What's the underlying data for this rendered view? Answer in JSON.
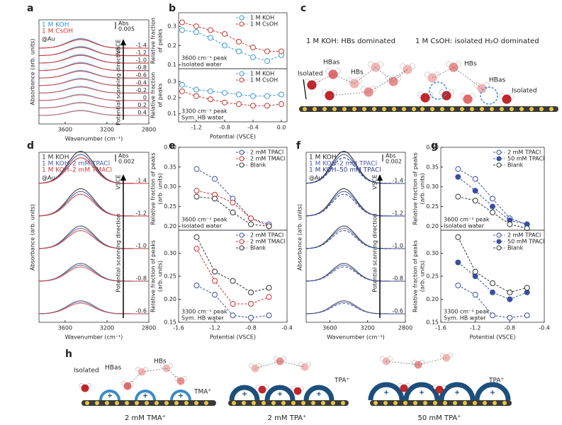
{
  "figure": {
    "panel_labels": [
      "a",
      "b",
      "c",
      "d",
      "e",
      "f",
      "g",
      "h"
    ],
    "c": {
      "titles": [
        "1 M KOH: HBs dominated",
        "1 M CsOH: isolated H₂O dominated"
      ],
      "labels": [
        "Isolated",
        "HBas",
        "HBs",
        "HBs",
        "HBas",
        "Isolated"
      ]
    },
    "h": {
      "labels": [
        "Isolated",
        "HBas",
        "HBs",
        "TMA⁺",
        "TPA⁺",
        "TPA⁺"
      ],
      "captions": [
        "2 mM TMA⁺",
        "2 mM TPA⁺",
        "50 mM TPA⁺"
      ]
    }
  },
  "chart_data": [
    {
      "type": "spectrum",
      "xlim": [
        3850,
        2800
      ],
      "xticks": [
        3600,
        3200,
        2800
      ],
      "xlabel": "Wavenumber (cm⁻¹)",
      "ylabel": "Absorbance (arb. units)",
      "legend": [
        {
          "name": "1 M KOH",
          "color": "#3d8fd1"
        },
        {
          "name": "1 M CsOH",
          "color": "#d83a34"
        }
      ],
      "scale_label": "Abs",
      "scale_value": 0.005,
      "substrate": "@Au",
      "axis_symbol": "VSCE",
      "arrow_label": "Potential scanning direction",
      "potentials": [
        -1.4,
        -1.2,
        {
          "value": -1.0,
          "label": "-1.0"
        },
        -0.8,
        -0.6,
        -0.4,
        -0.2,
        0,
        0.2,
        0.4
      ]
    },
    {
      "type": "line",
      "xlim": [
        -1.45,
        0.08
      ],
      "ylim": [
        0.08,
        0.37
      ],
      "yticks": [
        0.1,
        0.2,
        0.3
      ],
      "ylabel": [
        "Relative fraction",
        "of peaks"
      ],
      "annotation": [
        "3600 cm⁻¹ peak",
        "Isolated water"
      ],
      "legend": "upper right",
      "x": [
        -1.4,
        -1.2,
        -1.0,
        -0.8,
        -0.6,
        -0.4,
        -0.2,
        0
      ],
      "series": [
        {
          "name": "1 M KOH",
          "color": "#3d9ad6",
          "marker": "open",
          "values": [
            0.28,
            0.27,
            0.24,
            0.2,
            0.17,
            0.14,
            0.12,
            0.15
          ]
        },
        {
          "name": "1 M CsOH",
          "color": "#c8372f",
          "marker": "open",
          "values": [
            0.32,
            0.3,
            0.28,
            0.26,
            0.22,
            0.19,
            0.17,
            0.17
          ]
        }
      ]
    },
    {
      "type": "line",
      "xlim": [
        -1.45,
        0.08
      ],
      "ylim": [
        0.05,
        0.38
      ],
      "yticks": [
        0.1,
        0.2,
        0.3
      ],
      "xticks": [
        -1.2,
        -0.8,
        -0.4,
        {
          "value": 0,
          "label": "0.0"
        }
      ],
      "xlabel": "Potential (VSCE)",
      "ylabel": [
        "Relative fraction",
        "of peaks"
      ],
      "annotation": [
        "3300 cm⁻¹ peak",
        "Sym. HB water"
      ],
      "legend": "upper right",
      "x": [
        -1.4,
        -1.2,
        -1.0,
        -0.8,
        -0.6,
        -0.4,
        -0.2,
        0
      ],
      "series": [
        {
          "name": "1 M KOH",
          "color": "#3d9ad6",
          "marker": "open",
          "values": [
            0.28,
            0.25,
            0.24,
            0.23,
            0.22,
            0.21,
            0.21,
            0.22
          ]
        },
        {
          "name": "1 M CsOH",
          "color": "#c8372f",
          "marker": "open",
          "values": [
            0.24,
            0.21,
            0.19,
            0.17,
            0.16,
            0.15,
            0.15,
            0.16
          ]
        }
      ]
    },
    {
      "type": "spectrum",
      "xlim": [
        3850,
        2800
      ],
      "xticks": [
        3600,
        3200,
        2800
      ],
      "xlabel": "Wavenumber (cm⁻¹)",
      "ylabel": "Absorbance (arb. units)",
      "legend": [
        {
          "name": "1 M KOH",
          "color": "#333333"
        },
        {
          "name": "1 M KOH–2 mM TPACl",
          "color": "#4a5aa8"
        },
        {
          "name": "1 M KOH–2 mM TMACl",
          "color": "#d83a34"
        }
      ],
      "scale_label": "Abs",
      "scale_value": 0.002,
      "substrate": "@Au",
      "axis_symbol": "VSCE",
      "arrow_label": "Potential scanning direction",
      "potentials": [
        -1.4,
        -1.2,
        {
          "value": -1.0,
          "label": "-1.0"
        },
        -0.8,
        -0.6
      ]
    },
    {
      "type": "line",
      "xlim": [
        -1.6,
        -0.4
      ],
      "ylim": [
        0.19,
        0.4
      ],
      "yticks": [
        {
          "value": 0.2,
          "label": "0.20"
        },
        0.25,
        {
          "value": 0.3,
          "label": "0.30"
        },
        0.35,
        {
          "value": 0.4,
          "label": "0.40"
        }
      ],
      "ylabel": [
        "Relative fraction of peaks",
        "(arb. units)"
      ],
      "annotation": [
        "3600 cm⁻¹ peak",
        "Isolated water"
      ],
      "legend": "upper right",
      "x": [
        -1.4,
        -1.2,
        -1.0,
        -0.8,
        -0.6
      ],
      "series": [
        {
          "name": "2 mM TPACl",
          "color": "#3b4fa0",
          "marker": "open",
          "values": [
            0.345,
            0.32,
            0.27,
            0.22,
            0.205
          ]
        },
        {
          "name": "2 mM TMACl",
          "color": "#d0312d",
          "marker": "open",
          "values": [
            0.29,
            0.28,
            0.26,
            0.22,
            0.2
          ]
        },
        {
          "name": "Blank",
          "color": "#333333",
          "marker": "open",
          "values": [
            0.275,
            0.27,
            0.235,
            0.205,
            0.2
          ]
        }
      ]
    },
    {
      "type": "line",
      "xlim": [
        -1.6,
        -0.4
      ],
      "ylim": [
        0.15,
        0.35
      ],
      "yticks": [
        0.15,
        {
          "value": 0.2,
          "label": "0.20"
        },
        0.25,
        {
          "value": 0.3,
          "label": "0.30"
        }
      ],
      "xticks": [
        -1.6,
        -1.2,
        -0.8,
        -0.4
      ],
      "xlabel": "Potential (VSCE)",
      "ylabel": [
        "Relative fraction of peaks",
        "(arb. units)"
      ],
      "annotation": [
        "3300 cm⁻¹ peak",
        "Sym. HB water"
      ],
      "legend": "upper right",
      "x": [
        -1.4,
        -1.2,
        -1.0,
        -0.8,
        -0.6
      ],
      "series": [
        {
          "name": "2 mM TPACl",
          "color": "#3b4fa0",
          "marker": "open",
          "values": [
            0.23,
            0.21,
            0.165,
            0.16,
            0.165
          ]
        },
        {
          "name": "2 mM TMACl",
          "color": "#d0312d",
          "marker": "open",
          "values": [
            0.31,
            0.24,
            0.19,
            0.19,
            0.205
          ]
        },
        {
          "name": "Blank",
          "color": "#333333",
          "marker": "open",
          "values": [
            0.335,
            0.26,
            0.24,
            0.215,
            0.225
          ]
        }
      ]
    },
    {
      "type": "spectrum",
      "xlim": [
        3850,
        2800
      ],
      "xticks": [
        3600,
        3200,
        2800
      ],
      "xlabel": "Wavenumber (cm⁻¹)",
      "ylabel": "Absorbance (arb. units)",
      "legend": [
        {
          "name": "1 M KOH",
          "color": "#222222"
        },
        {
          "name": "1 M KOH–2 mM TPACl",
          "color": "#4a5aa8"
        },
        {
          "name": "1 M KOH–50 mM TPACl",
          "color": "#2c3e8a"
        }
      ],
      "scale_label": "Abs",
      "scale_value": 0.002,
      "substrate": "@Au",
      "axis_symbol": "VSCE",
      "arrow_label": "Potential scanning direction",
      "potentials": [
        -1.4,
        -1.2,
        {
          "value": -1.0,
          "label": "-1.0"
        },
        -0.8,
        -0.6
      ]
    },
    {
      "type": "line",
      "xlim": [
        -1.6,
        -0.4
      ],
      "ylim": [
        0.19,
        0.4
      ],
      "yticks": [
        {
          "value": 0.2,
          "label": "0.20"
        },
        0.25,
        {
          "value": 0.3,
          "label": "0.30"
        },
        0.35,
        {
          "value": 0.4,
          "label": "0.40"
        }
      ],
      "ylabel": [
        "Relative fraction of peaks",
        "(arb. units)"
      ],
      "annotation": [
        "3600 cm⁻¹ peak",
        "Isolated water"
      ],
      "legend": "upper right",
      "x": [
        -1.4,
        -1.2,
        -1.0,
        -0.8,
        -0.6
      ],
      "series": [
        {
          "name": "2 mM TPACl",
          "color": "#3b4fa0",
          "marker": "open",
          "values": [
            0.345,
            0.32,
            0.27,
            0.22,
            0.205
          ]
        },
        {
          "name": "50 mM TPACl",
          "color": "#3b4fa0",
          "marker": "filled",
          "values": [
            0.325,
            0.29,
            0.25,
            0.215,
            0.205
          ]
        },
        {
          "name": "Blank",
          "color": "#333333",
          "marker": "open",
          "values": [
            0.275,
            0.265,
            0.235,
            0.205,
            0.195
          ]
        }
      ]
    },
    {
      "type": "line",
      "xlim": [
        -1.6,
        -0.4
      ],
      "ylim": [
        0.15,
        0.35
      ],
      "yticks": [
        0.15,
        {
          "value": 0.2,
          "label": "0.20"
        },
        0.25,
        {
          "value": 0.3,
          "label": "0.30"
        }
      ],
      "xticks": [
        -1.6,
        -1.2,
        -0.8,
        -0.4
      ],
      "xlabel": "Potential (VSCE)",
      "ylabel": [
        "Relative fraction of peaks",
        "(arb. units)"
      ],
      "annotation": [
        "3300 cm⁻¹ peak",
        "Sym. HB water"
      ],
      "legend": "upper right",
      "x": [
        -1.4,
        -1.2,
        -1.0,
        -0.8,
        -0.6
      ],
      "series": [
        {
          "name": "2 mM TPACl",
          "color": "#3b4fa0",
          "marker": "open",
          "values": [
            0.23,
            0.21,
            0.165,
            0.16,
            0.165
          ]
        },
        {
          "name": "50 mM TPACl",
          "color": "#3b4fa0",
          "marker": "filled",
          "values": [
            0.28,
            0.25,
            0.215,
            0.2,
            0.215
          ]
        },
        {
          "name": "Blank",
          "color": "#333333",
          "marker": "open",
          "values": [
            0.335,
            0.26,
            0.235,
            0.215,
            0.225
          ]
        }
      ]
    }
  ]
}
